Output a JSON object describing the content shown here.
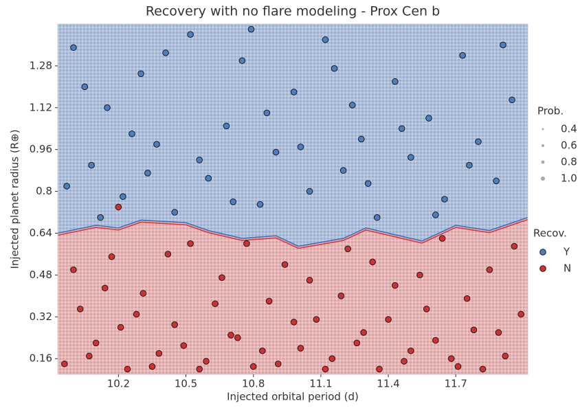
{
  "chart_data": {
    "type": "scatter",
    "title": "Recovery with no flare modeling - Prox Cen b",
    "x_label": "Injected orbital period (d)",
    "y_label": "Injected planet radius (R⊕)",
    "xlim": [
      9.93,
      12.02
    ],
    "ylim": [
      0.1,
      1.44
    ],
    "xticks": [
      10.2,
      10.5,
      10.8,
      11.1,
      11.4,
      11.7
    ],
    "yticks": [
      0.16,
      0.32,
      0.48,
      0.64,
      0.8,
      0.96,
      1.12,
      1.28
    ],
    "boundary": {
      "x": [
        9.93,
        10.1,
        10.2,
        10.3,
        10.5,
        10.6,
        10.75,
        10.9,
        11.0,
        11.2,
        11.3,
        11.45,
        11.55,
        11.7,
        11.85,
        12.02
      ],
      "values": [
        0.64,
        0.67,
        0.66,
        0.69,
        0.68,
        0.65,
        0.62,
        0.63,
        0.59,
        0.62,
        0.66,
        0.63,
        0.61,
        0.67,
        0.65,
        0.7
      ],
      "colors": [
        "#3b6fc4",
        "#d63a3a"
      ]
    },
    "region_colors": [
      "#a9c0e4",
      "#f2b2b2"
    ],
    "size_legend": {
      "title": "Prob.",
      "values": [
        0.4,
        0.6,
        0.8,
        {
          "value": 1,
          "label": "1.0"
        }
      ],
      "color": "#a8a8a8"
    },
    "legend_title": "Recov.",
    "series": [
      {
        "name": "Y",
        "color": "#4a7fc1",
        "x": [
          10.0,
          10.08,
          10.15,
          10.22,
          10.3,
          10.37,
          10.45,
          10.52,
          10.6,
          10.68,
          10.75,
          10.83,
          10.9,
          10.98,
          11.05,
          11.12,
          11.2,
          11.28,
          11.35,
          11.43,
          11.5,
          11.58,
          11.65,
          11.73,
          11.8,
          11.88,
          11.95,
          9.97,
          10.05,
          10.12,
          10.26,
          10.41,
          10.56,
          10.71,
          10.86,
          11.01,
          11.16,
          11.31,
          11.46,
          11.61,
          11.76,
          11.91,
          10.33,
          10.79,
          11.24
        ],
        "values": [
          1.35,
          0.9,
          1.12,
          0.78,
          1.25,
          0.98,
          0.72,
          1.4,
          0.85,
          1.05,
          1.3,
          0.75,
          0.95,
          1.18,
          0.8,
          1.38,
          0.88,
          1.0,
          0.7,
          1.22,
          0.93,
          1.08,
          0.77,
          1.32,
          0.99,
          0.84,
          1.15,
          0.82,
          1.2,
          0.7,
          1.02,
          1.33,
          0.92,
          0.76,
          1.1,
          0.97,
          1.27,
          0.83,
          1.04,
          0.71,
          0.9,
          1.36,
          0.87,
          1.42,
          1.13
        ]
      },
      {
        "name": "N",
        "color": "#d42f2f",
        "x": [
          9.96,
          10.03,
          10.1,
          10.17,
          10.24,
          10.31,
          10.38,
          10.45,
          10.52,
          10.59,
          10.66,
          10.73,
          10.8,
          10.87,
          10.94,
          11.01,
          11.08,
          11.15,
          11.22,
          11.29,
          11.36,
          11.43,
          11.5,
          11.57,
          11.64,
          11.71,
          11.78,
          11.85,
          11.92,
          11.99,
          10.0,
          10.07,
          10.14,
          10.21,
          10.28,
          10.35,
          10.42,
          10.49,
          10.56,
          10.63,
          10.7,
          10.77,
          10.84,
          10.91,
          10.98,
          11.05,
          11.12,
          11.19,
          11.26,
          11.33,
          11.4,
          11.47,
          11.54,
          11.61,
          11.68,
          11.75,
          11.82,
          11.89,
          11.96,
          10.2
        ],
        "values": [
          0.14,
          0.35,
          0.22,
          0.55,
          0.12,
          0.41,
          0.18,
          0.29,
          0.6,
          0.15,
          0.47,
          0.24,
          0.13,
          0.38,
          0.52,
          0.2,
          0.31,
          0.16,
          0.58,
          0.26,
          0.12,
          0.44,
          0.19,
          0.35,
          0.62,
          0.13,
          0.27,
          0.5,
          0.17,
          0.33,
          0.5,
          0.17,
          0.43,
          0.28,
          0.33,
          0.13,
          0.56,
          0.21,
          0.12,
          0.37,
          0.25,
          0.6,
          0.19,
          0.14,
          0.3,
          0.46,
          0.12,
          0.4,
          0.22,
          0.53,
          0.31,
          0.15,
          0.48,
          0.23,
          0.16,
          0.39,
          0.12,
          0.26,
          0.59,
          0.74
        ]
      }
    ]
  }
}
